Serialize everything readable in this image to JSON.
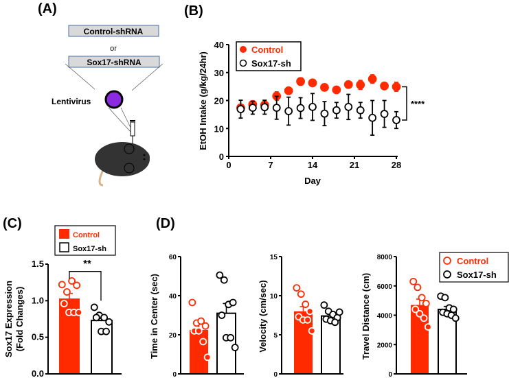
{
  "panels": {
    "a": "(A)",
    "b": "(B)",
    "c": "(C)",
    "d": "(D)"
  },
  "schematic": {
    "box1": "Control-shRNA",
    "or": "or",
    "box2": "Sox17-shRNA",
    "virus": "Lentivirus"
  },
  "colors": {
    "control": "#ff2a00",
    "sox": "#000000",
    "virus": "#8a2be2",
    "box_fill": "#d9d9d9",
    "box_border": "#4a6fa5"
  },
  "chart_data": [
    {
      "id": "B",
      "type": "line",
      "title": "",
      "xlabel": "Day",
      "ylabel": "EtOH Intake (g/kg/24hr)",
      "xlim": [
        0,
        28
      ],
      "ylim": [
        0,
        40
      ],
      "xticks": [
        "0",
        "7",
        "14",
        "21",
        "28"
      ],
      "yticks": [
        "0",
        "10",
        "20",
        "30",
        "40"
      ],
      "x": [
        2,
        4,
        6,
        8,
        10,
        12,
        14,
        16,
        18,
        20,
        22,
        24,
        26,
        28
      ],
      "series": [
        {
          "name": "Control",
          "values": [
            17.4,
            18.6,
            18.4,
            21.6,
            23.5,
            26.8,
            26.3,
            24.7,
            23.8,
            25.7,
            25.6,
            27.7,
            25.2,
            24.9
          ],
          "sem": [
            1.2,
            1.0,
            1.3,
            1.5,
            0.6,
            1.3,
            1.1,
            1.2,
            1.1,
            1.2,
            1.6,
            1.5,
            1.2,
            1.6
          ]
        },
        {
          "name": "Sox17-sh",
          "values": [
            16.9,
            17.4,
            17.6,
            17.4,
            16.2,
            17.3,
            17.7,
            15.3,
            16.5,
            17.7,
            16.5,
            13.8,
            15.2,
            13.0
          ],
          "sem": [
            3.2,
            2.3,
            2.5,
            4.1,
            5.0,
            3.7,
            4.8,
            4.3,
            2.8,
            4.5,
            2.8,
            6.2,
            4.8,
            3.0
          ]
        }
      ],
      "annotation": "****",
      "legend": "top-left"
    },
    {
      "id": "C",
      "type": "bar",
      "ylabel": "Sox17 Expression",
      "ylabel2": "(Fold Changes)",
      "ylim": [
        0,
        1.5
      ],
      "yticks": [
        "0.0",
        "0.5",
        "1.0",
        "1.5"
      ],
      "categories": [
        "Control",
        "Sox17-sh"
      ],
      "values": [
        1.03,
        0.73
      ],
      "sem": [
        0.07,
        0.05
      ],
      "points": [
        [
          1.22,
          1.12,
          1.27,
          1.21,
          0.96,
          0.84,
          0.84,
          0.84
        ],
        [
          0.91,
          0.8,
          0.77,
          0.71,
          0.77,
          0.58,
          0.58
        ]
      ],
      "annotation": "**",
      "legend": "top"
    },
    {
      "id": "D1",
      "type": "bar",
      "ylabel": "Time in Center (sec)",
      "ylim": [
        0,
        60
      ],
      "yticks": [
        "0",
        "20",
        "40",
        "60"
      ],
      "categories": [
        "Control",
        "Sox17-sh"
      ],
      "values": [
        22.5,
        31
      ],
      "sem": [
        3,
        5
      ],
      "points": [
        [
          36.5,
          26,
          27,
          24.5,
          22,
          22,
          16.5,
          8.5
        ],
        [
          50.5,
          48,
          35.5,
          36.5,
          30,
          18.5,
          18.5,
          13.5
        ]
      ]
    },
    {
      "id": "D2",
      "type": "bar",
      "ylabel": "Velocity  (cm/sec)",
      "ylim": [
        0,
        15
      ],
      "yticks": [
        "0",
        "5",
        "10",
        "15"
      ],
      "categories": [
        "Control",
        "Sox17-sh"
      ],
      "values": [
        8.0,
        7.4
      ],
      "sem": [
        0.6,
        0.3
      ],
      "points": [
        [
          11,
          10.2,
          8.9,
          8,
          7.3,
          6.9,
          6.9,
          5.5
        ],
        [
          8.8,
          8.0,
          7.6,
          7.2,
          7.0,
          6.8,
          6.6,
          7.9
        ]
      ]
    },
    {
      "id": "D3",
      "type": "bar",
      "ylabel": "Travel Distance (cm)",
      "ylim": [
        0,
        8000
      ],
      "yticks": [
        "0",
        "2000",
        "4000",
        "6000",
        "8000"
      ],
      "categories": [
        "Control",
        "Sox17-sh"
      ],
      "values": [
        4700,
        4400
      ],
      "sem": [
        400,
        200
      ],
      "points": [
        [
          6300,
          5900,
          5200,
          4800,
          4400,
          4100,
          3800,
          3200
        ],
        [
          5300,
          5200,
          4500,
          4400,
          4200,
          4100,
          4000,
          3800
        ]
      ],
      "legend": "top-right"
    }
  ]
}
